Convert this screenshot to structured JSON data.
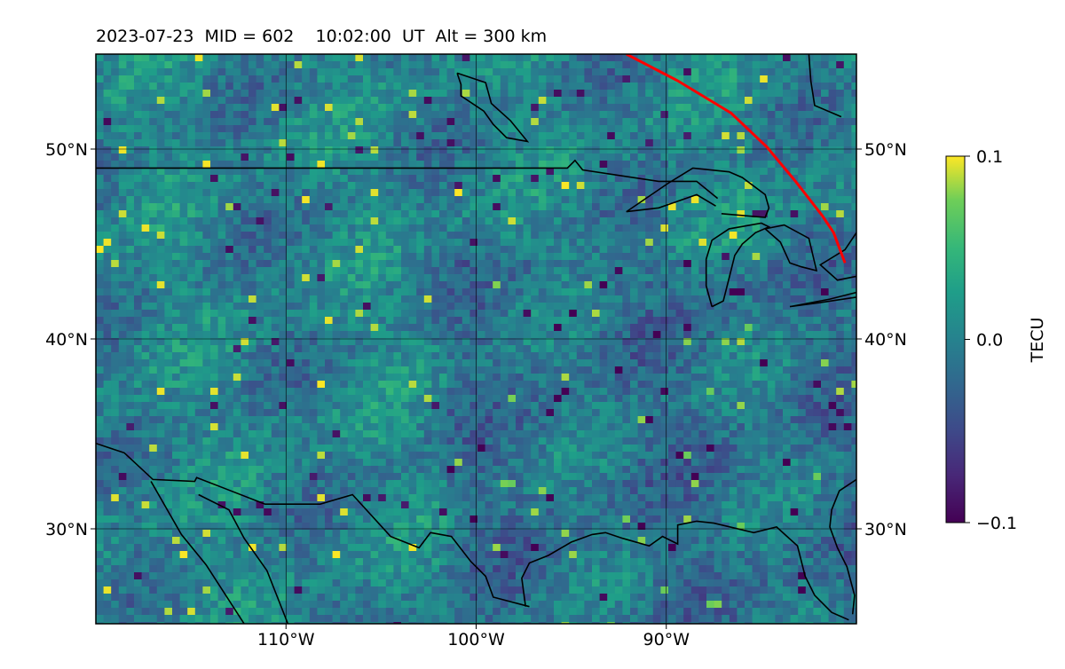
{
  "title": "2023-07-23  MID = 602    10:02:00  UT  Alt = 300 km",
  "map": {
    "lon_range": [
      -120,
      -80
    ],
    "lat_range": [
      25,
      55
    ],
    "lon_ticks": [
      {
        "lon": -110,
        "label": "110°W"
      },
      {
        "lon": -100,
        "label": "100°W"
      },
      {
        "lon": -90,
        "label": "90°W"
      }
    ],
    "lat_ticks": [
      {
        "lat": 50,
        "label": "50°N"
      },
      {
        "lat": 40,
        "label": "40°N"
      },
      {
        "lat": 30,
        "label": "30°N"
      }
    ],
    "grid": true,
    "colormap": "viridis",
    "colors": {
      "min": "#440154",
      "mid": "#21908d",
      "max": "#fde725",
      "boundary": "#000000",
      "track": "#ff0000"
    }
  },
  "colorbar": {
    "label": "TECU",
    "range": [
      -0.1,
      0.1
    ],
    "ticks": [
      {
        "value": 0.1,
        "label": "0.1"
      },
      {
        "value": 0.0,
        "label": "0.0"
      },
      {
        "value": -0.1,
        "label": "−0.1"
      }
    ]
  },
  "features": {
    "track": [
      [
        -92.1,
        55
      ],
      [
        -89.4,
        53.6
      ],
      [
        -86.6,
        51.9
      ],
      [
        -84.7,
        50.1
      ],
      [
        -83.2,
        48.3
      ],
      [
        -81.8,
        46.5
      ],
      [
        -81.2,
        45.6
      ],
      [
        -80.6,
        44.0
      ]
    ],
    "boundaries": [
      [
        [
          -120,
          49.0
        ],
        [
          -95.2,
          49.0
        ],
        [
          -94.8,
          49.4
        ],
        [
          -94.4,
          48.9
        ],
        [
          -90.4,
          48.3
        ],
        [
          -88.4,
          48.3
        ],
        [
          -87.3,
          47.4
        ]
      ],
      [
        [
          -120,
          34.5
        ],
        [
          -118.5,
          34.0
        ],
        [
          -117.0,
          32.6
        ],
        [
          -114.8,
          32.5
        ],
        [
          -114.7,
          32.7
        ],
        [
          -111.1,
          31.3
        ],
        [
          -108.2,
          31.3
        ],
        [
          -106.5,
          31.8
        ],
        [
          -104.5,
          29.6
        ],
        [
          -103.0,
          29.0
        ],
        [
          -102.4,
          29.8
        ],
        [
          -101.3,
          29.6
        ],
        [
          -100.3,
          28.3
        ],
        [
          -99.5,
          27.5
        ],
        [
          -99.1,
          26.4
        ],
        [
          -97.2,
          25.9
        ]
      ],
      [
        [
          -97.4,
          25.9
        ],
        [
          -97.6,
          27.4
        ],
        [
          -97.2,
          28.2
        ],
        [
          -96.2,
          28.6
        ],
        [
          -95.0,
          29.3
        ],
        [
          -93.9,
          29.7
        ],
        [
          -93.2,
          29.8
        ],
        [
          -92.3,
          29.5
        ],
        [
          -90.9,
          29.1
        ],
        [
          -90.2,
          29.6
        ],
        [
          -89.4,
          29.2
        ],
        [
          -89.4,
          30.2
        ],
        [
          -88.4,
          30.4
        ],
        [
          -87.5,
          30.3
        ],
        [
          -85.4,
          29.8
        ],
        [
          -84.2,
          30.1
        ],
        [
          -83.1,
          29.1
        ],
        [
          -82.7,
          27.5
        ],
        [
          -82.2,
          26.5
        ],
        [
          -81.3,
          25.6
        ],
        [
          -80.4,
          25.2
        ]
      ],
      [
        [
          -80.0,
          32.6
        ],
        [
          -80.9,
          32.0
        ],
        [
          -81.3,
          31.0
        ],
        [
          -81.4,
          30.1
        ],
        [
          -81.0,
          29.0
        ],
        [
          -80.5,
          28.0
        ],
        [
          -80.1,
          26.5
        ],
        [
          -80.2,
          25.5
        ]
      ],
      [
        [
          -117.1,
          32.5
        ],
        [
          -115.5,
          29.7
        ],
        [
          -114.2,
          28.1
        ],
        [
          -112.2,
          25.0
        ]
      ],
      [
        [
          -114.6,
          31.8
        ],
        [
          -113.0,
          31.0
        ],
        [
          -112.2,
          29.5
        ],
        [
          -111.0,
          27.8
        ],
        [
          -109.9,
          25.0
        ]
      ],
      [
        [
          -87.1,
          46.6
        ],
        [
          -84.8,
          46.4
        ],
        [
          -84.6,
          46.9
        ],
        [
          -84.8,
          47.6
        ],
        [
          -86.0,
          48.5
        ],
        [
          -86.7,
          48.8
        ],
        [
          -88.6,
          49.0
        ],
        [
          -89.9,
          48.2
        ],
        [
          -92.1,
          46.7
        ],
        [
          -90.4,
          46.9
        ],
        [
          -88.4,
          47.6
        ],
        [
          -87.4,
          47.0
        ]
      ],
      [
        [
          -87.6,
          41.7
        ],
        [
          -87.0,
          42.0
        ],
        [
          -86.7,
          43.2
        ],
        [
          -86.4,
          44.4
        ],
        [
          -86.0,
          45.0
        ],
        [
          -85.3,
          45.6
        ],
        [
          -84.6,
          45.9
        ],
        [
          -85.0,
          46.1
        ],
        [
          -86.7,
          45.8
        ],
        [
          -87.6,
          45.2
        ],
        [
          -87.9,
          44.2
        ],
        [
          -87.9,
          42.8
        ],
        [
          -87.6,
          41.7
        ]
      ],
      [
        [
          -84.8,
          45.8
        ],
        [
          -83.8,
          46.0
        ],
        [
          -82.5,
          45.3
        ],
        [
          -82.1,
          43.6
        ],
        [
          -82.9,
          43.8
        ],
        [
          -83.5,
          44.0
        ],
        [
          -84.0,
          45.1
        ],
        [
          -84.8,
          45.8
        ]
      ],
      [
        [
          -83.5,
          41.7
        ],
        [
          -81.4,
          42.1
        ],
        [
          -79.8,
          42.5
        ],
        [
          -80.0,
          42.2
        ],
        [
          -82.0,
          41.9
        ],
        [
          -83.5,
          41.7
        ]
      ],
      [
        [
          -80.0,
          43.3
        ],
        [
          -81.0,
          43.1
        ],
        [
          -81.9,
          43.9
        ],
        [
          -80.6,
          44.7
        ],
        [
          -80.0,
          45.6
        ]
      ],
      [
        [
          -80.8,
          51.7
        ],
        [
          -82.2,
          52.3
        ],
        [
          -82.4,
          53.6
        ],
        [
          -82.5,
          55.0
        ]
      ],
      [
        [
          -101.0,
          54.0
        ],
        [
          -99.5,
          53.5
        ],
        [
          -99.2,
          52.4
        ],
        [
          -98.2,
          51.5
        ],
        [
          -97.3,
          50.4
        ],
        [
          -98.4,
          50.6
        ],
        [
          -99.1,
          51.3
        ],
        [
          -99.6,
          52.0
        ],
        [
          -100.8,
          52.8
        ],
        [
          -100.8,
          53.4
        ],
        [
          -101.0,
          54.0
        ]
      ]
    ]
  }
}
